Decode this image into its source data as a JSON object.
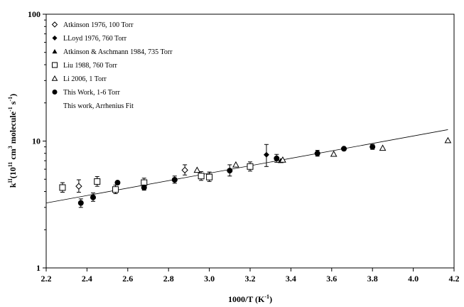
{
  "chart_data": {
    "type": "scatter",
    "title": "",
    "xlabel_base": "1000/T (K",
    "xlabel_sup": "-1",
    "xlabel_tail": ")",
    "ylabel_parts": [
      {
        "t": "k",
        "s": "n"
      },
      {
        "t": "II",
        "s": "sup"
      },
      {
        "t": "(10",
        "s": "n"
      },
      {
        "t": "11",
        "s": "sup"
      },
      {
        "t": " cm",
        "s": "n"
      },
      {
        "t": "3",
        "s": "sup"
      },
      {
        "t": " molecule",
        "s": "n"
      },
      {
        "t": "-1",
        "s": "sup"
      },
      {
        "t": " s",
        "s": "n"
      },
      {
        "t": "-1",
        "s": "sup"
      },
      {
        "t": ")",
        "s": "n"
      }
    ],
    "xlim": [
      2.2,
      4.2
    ],
    "ylim": [
      1,
      100
    ],
    "yscale": "log",
    "xticks": [
      "2.2",
      "2.4",
      "2.6",
      "2.8",
      "3.0",
      "3.2",
      "3.4",
      "3.6",
      "3.8",
      "4.0",
      "4.2"
    ],
    "yticks": [
      {
        "v": 1,
        "label": "1"
      },
      {
        "v": 10,
        "label": "10"
      },
      {
        "v": 100,
        "label": "100"
      }
    ],
    "grid": false,
    "legend_position": "top-left",
    "series": [
      {
        "name": "Atkinson 1976, 100 Torr",
        "marker": "diamond-open",
        "points": [
          {
            "x": 2.36,
            "y": 4.4,
            "lo": 3.95,
            "hi": 4.95
          },
          {
            "x": 2.88,
            "y": 5.9,
            "lo": 5.4,
            "hi": 6.5
          }
        ]
      },
      {
        "name": "LLoyd 1976, 760 Torr",
        "marker": "diamond-filled",
        "points": [
          {
            "x": 3.28,
            "y": 7.8,
            "lo": 6.3,
            "hi": 9.4
          }
        ]
      },
      {
        "name": "Atkinson & Aschmann 1984, 735 Torr",
        "marker": "triangle-filled",
        "points": [
          {
            "x": 3.35,
            "y": 7.0
          }
        ]
      },
      {
        "name": "Liu 1988, 760 Torr",
        "marker": "square-open",
        "points": [
          {
            "x": 2.28,
            "y": 4.3,
            "lo": 3.95,
            "hi": 4.7
          },
          {
            "x": 2.45,
            "y": 4.8,
            "lo": 4.4,
            "hi": 5.25
          },
          {
            "x": 2.54,
            "y": 4.15,
            "lo": 3.85,
            "hi": 4.5
          },
          {
            "x": 2.68,
            "y": 4.7,
            "lo": 4.35,
            "hi": 5.1
          },
          {
            "x": 2.96,
            "y": 5.3,
            "lo": 4.9,
            "hi": 5.75
          },
          {
            "x": 3.0,
            "y": 5.2,
            "lo": 4.8,
            "hi": 5.7
          },
          {
            "x": 3.2,
            "y": 6.3,
            "lo": 5.8,
            "hi": 6.85
          }
        ]
      },
      {
        "name": "Li 2006, 1 Torr",
        "marker": "triangle-open",
        "points": [
          {
            "x": 2.94,
            "y": 5.9
          },
          {
            "x": 3.13,
            "y": 6.5
          },
          {
            "x": 3.36,
            "y": 7.1
          },
          {
            "x": 3.61,
            "y": 7.9
          },
          {
            "x": 3.85,
            "y": 8.8
          },
          {
            "x": 4.17,
            "y": 10.1
          }
        ]
      },
      {
        "name": "This Work, 1-6 Torr",
        "marker": "circle-filled",
        "points": [
          {
            "x": 2.37,
            "y": 3.25,
            "lo": 3.0,
            "hi": 3.5
          },
          {
            "x": 2.43,
            "y": 3.6,
            "lo": 3.35,
            "hi": 3.9
          },
          {
            "x": 2.55,
            "y": 4.7
          },
          {
            "x": 2.68,
            "y": 4.3,
            "lo": 4.1,
            "hi": 4.5
          },
          {
            "x": 2.83,
            "y": 4.95,
            "lo": 4.65,
            "hi": 5.3
          },
          {
            "x": 3.1,
            "y": 5.85,
            "lo": 5.3,
            "hi": 6.5
          },
          {
            "x": 3.33,
            "y": 7.3,
            "lo": 6.8,
            "hi": 7.85
          },
          {
            "x": 3.53,
            "y": 8.0,
            "lo": 7.6,
            "hi": 8.45
          },
          {
            "x": 3.66,
            "y": 8.7
          },
          {
            "x": 3.8,
            "y": 9.0,
            "lo": 8.6,
            "hi": 9.4
          }
        ]
      },
      {
        "name": "This work, Arrhenius Fit",
        "marker": "line",
        "line": [
          {
            "x": 2.2,
            "y": 3.25
          },
          {
            "x": 4.17,
            "y": 12.3
          }
        ]
      }
    ]
  }
}
